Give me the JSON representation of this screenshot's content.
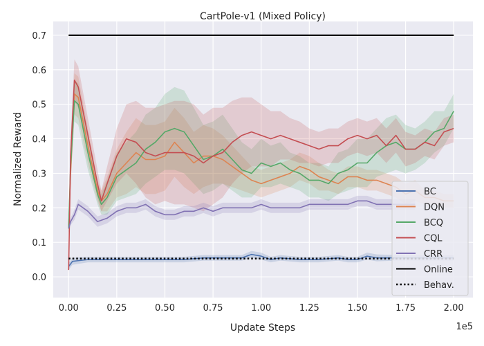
{
  "chart_data": {
    "type": "line",
    "title": "CartPole-v1 (Mixed Policy)",
    "xlabel": "Update Steps",
    "ylabel": "Normalized Reward",
    "x_multiplier_label": "1e5",
    "xlim": [
      -0.08,
      2.1
    ],
    "ylim": [
      -0.06,
      0.74
    ],
    "x_ticks": [
      0.0,
      0.25,
      0.5,
      0.75,
      1.0,
      1.25,
      1.5,
      1.75,
      2.0
    ],
    "x_tick_labels": [
      "0.00",
      "0.25",
      "0.50",
      "0.75",
      "1.00",
      "1.25",
      "1.50",
      "1.75",
      "2.00"
    ],
    "y_ticks": [
      0.0,
      0.1,
      0.2,
      0.3,
      0.4,
      0.5,
      0.6,
      0.7
    ],
    "y_tick_labels": [
      "0.0",
      "0.1",
      "0.2",
      "0.3",
      "0.4",
      "0.5",
      "0.6",
      "0.7"
    ],
    "grid": true,
    "background": "#eaeaf2",
    "legend_position": "lower-right",
    "series": [
      {
        "name": "BC",
        "color": "#4c72b0",
        "style": "solid",
        "x": [
          0.0,
          0.02,
          0.1,
          0.2,
          0.3,
          0.4,
          0.5,
          0.6,
          0.7,
          0.8,
          0.9,
          0.95,
          1.0,
          1.05,
          1.1,
          1.2,
          1.3,
          1.4,
          1.45,
          1.5,
          1.55,
          1.6,
          1.7,
          1.8,
          1.9,
          2.0
        ],
        "y": [
          0.03,
          0.045,
          0.05,
          0.05,
          0.05,
          0.05,
          0.05,
          0.05,
          0.055,
          0.055,
          0.055,
          0.065,
          0.06,
          0.05,
          0.055,
          0.05,
          0.05,
          0.055,
          0.05,
          0.05,
          0.06,
          0.055,
          0.055,
          0.055,
          0.055,
          0.055
        ],
        "band": [
          0.01,
          0.01,
          0.008,
          0.008,
          0.008,
          0.008,
          0.008,
          0.008,
          0.008,
          0.008,
          0.008,
          0.01,
          0.01,
          0.008,
          0.008,
          0.008,
          0.008,
          0.008,
          0.008,
          0.008,
          0.01,
          0.01,
          0.008,
          0.008,
          0.008,
          0.008
        ]
      },
      {
        "name": "DQN",
        "color": "#dd8452",
        "style": "solid",
        "x": [
          0.0,
          0.01,
          0.03,
          0.05,
          0.1,
          0.15,
          0.17,
          0.2,
          0.25,
          0.3,
          0.35,
          0.4,
          0.45,
          0.5,
          0.55,
          0.6,
          0.65,
          0.7,
          0.75,
          0.8,
          0.85,
          0.9,
          0.95,
          1.0,
          1.05,
          1.1,
          1.15,
          1.2,
          1.25,
          1.3,
          1.35,
          1.4,
          1.45,
          1.5,
          1.55,
          1.6,
          1.65,
          1.7,
          1.75,
          1.8,
          1.85,
          1.9,
          1.95,
          2.0
        ],
        "y": [
          0.14,
          0.3,
          0.53,
          0.52,
          0.38,
          0.25,
          0.22,
          0.24,
          0.3,
          0.33,
          0.36,
          0.34,
          0.34,
          0.35,
          0.39,
          0.36,
          0.33,
          0.35,
          0.35,
          0.34,
          0.32,
          0.3,
          0.28,
          0.27,
          0.28,
          0.29,
          0.3,
          0.32,
          0.31,
          0.29,
          0.28,
          0.27,
          0.29,
          0.29,
          0.28,
          0.28,
          0.27,
          0.26,
          0.24,
          0.25,
          0.23,
          0.23,
          0.22,
          0.22
        ],
        "band": [
          0.02,
          0.04,
          0.06,
          0.06,
          0.05,
          0.03,
          0.03,
          0.05,
          0.07,
          0.09,
          0.1,
          0.1,
          0.1,
          0.1,
          0.1,
          0.1,
          0.09,
          0.09,
          0.08,
          0.07,
          0.06,
          0.05,
          0.04,
          0.04,
          0.04,
          0.04,
          0.04,
          0.04,
          0.04,
          0.04,
          0.03,
          0.03,
          0.03,
          0.03,
          0.03,
          0.03,
          0.03,
          0.03,
          0.03,
          0.03,
          0.02,
          0.02,
          0.02,
          0.02
        ]
      },
      {
        "name": "BCQ",
        "color": "#55a868",
        "style": "solid",
        "x": [
          0.0,
          0.01,
          0.03,
          0.05,
          0.1,
          0.15,
          0.17,
          0.2,
          0.25,
          0.3,
          0.35,
          0.4,
          0.45,
          0.5,
          0.55,
          0.6,
          0.65,
          0.7,
          0.75,
          0.8,
          0.85,
          0.9,
          0.95,
          1.0,
          1.05,
          1.1,
          1.15,
          1.2,
          1.25,
          1.3,
          1.35,
          1.4,
          1.45,
          1.5,
          1.55,
          1.6,
          1.65,
          1.7,
          1.75,
          1.8,
          1.85,
          1.9,
          1.95,
          2.0
        ],
        "y": [
          0.14,
          0.32,
          0.51,
          0.5,
          0.36,
          0.24,
          0.21,
          0.23,
          0.29,
          0.31,
          0.33,
          0.37,
          0.39,
          0.42,
          0.43,
          0.42,
          0.38,
          0.34,
          0.35,
          0.37,
          0.34,
          0.31,
          0.3,
          0.33,
          0.32,
          0.33,
          0.31,
          0.3,
          0.28,
          0.28,
          0.27,
          0.3,
          0.31,
          0.33,
          0.33,
          0.36,
          0.38,
          0.39,
          0.37,
          0.37,
          0.39,
          0.42,
          0.43,
          0.48
        ],
        "band": [
          0.02,
          0.04,
          0.06,
          0.06,
          0.05,
          0.03,
          0.03,
          0.05,
          0.07,
          0.08,
          0.09,
          0.1,
          0.1,
          0.11,
          0.12,
          0.12,
          0.11,
          0.1,
          0.1,
          0.1,
          0.09,
          0.08,
          0.07,
          0.07,
          0.06,
          0.06,
          0.05,
          0.05,
          0.05,
          0.05,
          0.05,
          0.06,
          0.06,
          0.07,
          0.07,
          0.07,
          0.08,
          0.08,
          0.07,
          0.06,
          0.06,
          0.06,
          0.05,
          0.05
        ]
      },
      {
        "name": "CQL",
        "color": "#c44e52",
        "style": "solid",
        "x": [
          0.0,
          0.01,
          0.03,
          0.05,
          0.1,
          0.15,
          0.17,
          0.2,
          0.25,
          0.3,
          0.35,
          0.4,
          0.45,
          0.5,
          0.55,
          0.6,
          0.65,
          0.7,
          0.75,
          0.8,
          0.85,
          0.9,
          0.95,
          1.0,
          1.05,
          1.1,
          1.15,
          1.2,
          1.25,
          1.3,
          1.35,
          1.4,
          1.45,
          1.5,
          1.55,
          1.6,
          1.65,
          1.7,
          1.75,
          1.8,
          1.85,
          1.9,
          1.95,
          2.0
        ],
        "y": [
          0.02,
          0.35,
          0.57,
          0.55,
          0.41,
          0.27,
          0.22,
          0.27,
          0.35,
          0.4,
          0.39,
          0.36,
          0.35,
          0.36,
          0.36,
          0.36,
          0.35,
          0.33,
          0.35,
          0.36,
          0.39,
          0.41,
          0.42,
          0.41,
          0.4,
          0.41,
          0.4,
          0.39,
          0.38,
          0.37,
          0.38,
          0.38,
          0.4,
          0.41,
          0.4,
          0.41,
          0.38,
          0.41,
          0.37,
          0.37,
          0.39,
          0.38,
          0.42,
          0.43
        ],
        "band": [
          0.02,
          0.05,
          0.06,
          0.06,
          0.05,
          0.04,
          0.03,
          0.05,
          0.08,
          0.1,
          0.12,
          0.13,
          0.14,
          0.14,
          0.15,
          0.15,
          0.15,
          0.14,
          0.14,
          0.13,
          0.12,
          0.11,
          0.1,
          0.09,
          0.08,
          0.07,
          0.06,
          0.06,
          0.05,
          0.05,
          0.05,
          0.05,
          0.05,
          0.05,
          0.05,
          0.05,
          0.05,
          0.05,
          0.05,
          0.04,
          0.04,
          0.04,
          0.04,
          0.04
        ]
      },
      {
        "name": "CRR",
        "color": "#8172b3",
        "style": "solid",
        "x": [
          0.0,
          0.01,
          0.03,
          0.05,
          0.1,
          0.15,
          0.2,
          0.25,
          0.3,
          0.35,
          0.4,
          0.45,
          0.5,
          0.55,
          0.6,
          0.65,
          0.7,
          0.75,
          0.8,
          0.85,
          0.9,
          0.95,
          1.0,
          1.05,
          1.1,
          1.15,
          1.2,
          1.25,
          1.3,
          1.35,
          1.4,
          1.45,
          1.5,
          1.55,
          1.6,
          1.65,
          1.7,
          1.75,
          1.8
        ],
        "y": [
          0.14,
          0.16,
          0.18,
          0.21,
          0.19,
          0.16,
          0.17,
          0.19,
          0.2,
          0.2,
          0.21,
          0.19,
          0.18,
          0.18,
          0.19,
          0.19,
          0.2,
          0.19,
          0.2,
          0.2,
          0.2,
          0.2,
          0.21,
          0.2,
          0.2,
          0.2,
          0.2,
          0.21,
          0.21,
          0.21,
          0.21,
          0.21,
          0.22,
          0.22,
          0.21,
          0.21,
          0.21,
          0.21,
          0.21
        ],
        "band": [
          0.01,
          0.01,
          0.015,
          0.015,
          0.015,
          0.015,
          0.015,
          0.015,
          0.015,
          0.015,
          0.015,
          0.015,
          0.015,
          0.015,
          0.015,
          0.015,
          0.015,
          0.015,
          0.015,
          0.015,
          0.015,
          0.015,
          0.015,
          0.015,
          0.015,
          0.015,
          0.015,
          0.015,
          0.015,
          0.015,
          0.015,
          0.015,
          0.015,
          0.015,
          0.015,
          0.015,
          0.015,
          0.015,
          0.015
        ]
      },
      {
        "name": "Online",
        "color": "#000000",
        "style": "solid",
        "x": [
          0.0,
          2.0
        ],
        "y": [
          0.7,
          0.7
        ]
      },
      {
        "name": "Behav.",
        "color": "#000000",
        "style": "dotted",
        "x": [
          0.0,
          2.0
        ],
        "y": [
          0.053,
          0.053
        ]
      }
    ]
  }
}
